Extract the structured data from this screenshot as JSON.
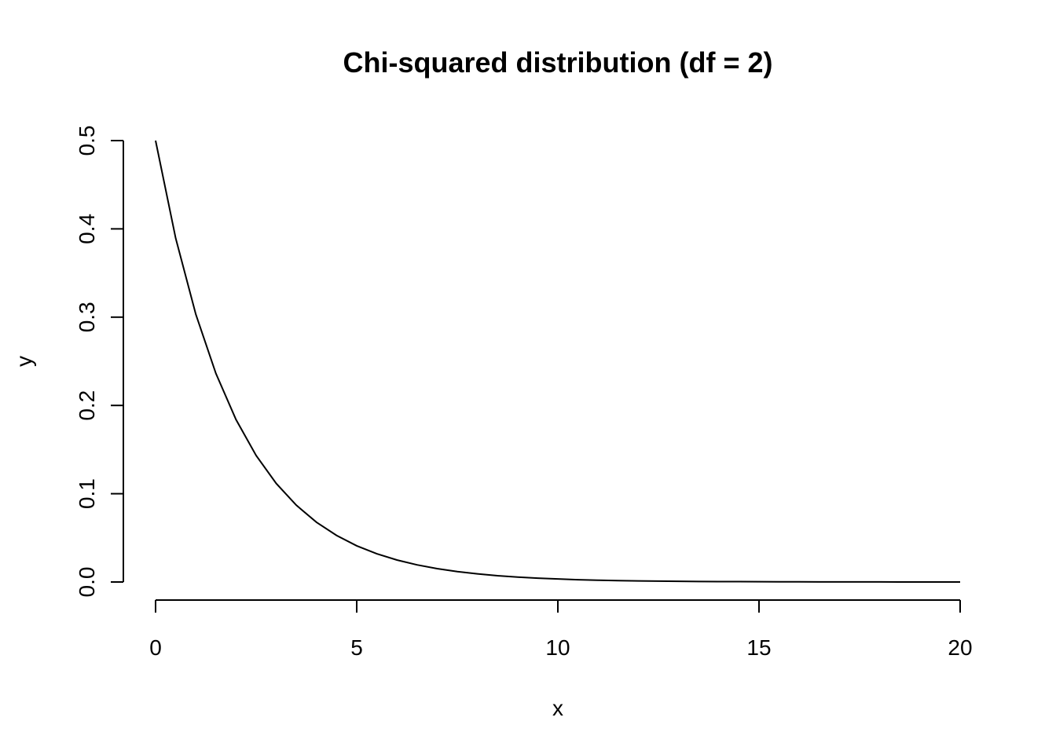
{
  "chart_data": {
    "type": "line",
    "title": "Chi-squared distribution (df = 2)",
    "xlabel": "x",
    "ylabel": "y",
    "xlim": [
      0,
      20
    ],
    "ylim": [
      0,
      0.5
    ],
    "x_ticks": [
      0,
      5,
      10,
      15,
      20
    ],
    "x_tick_labels": [
      "0",
      "5",
      "10",
      "15",
      "20"
    ],
    "y_ticks": [
      0,
      0.1,
      0.2,
      0.3,
      0.4,
      0.5
    ],
    "y_tick_labels": [
      "0.0",
      "0.1",
      "0.2",
      "0.3",
      "0.4",
      "0.5"
    ],
    "grid": false,
    "legend": "none",
    "series": [
      {
        "x": [
          0,
          0.5,
          1,
          1.5,
          2,
          2.5,
          3,
          3.5,
          4,
          4.5,
          5,
          5.5,
          6,
          6.5,
          7,
          7.5,
          8,
          8.5,
          9,
          9.5,
          10,
          10.5,
          11,
          11.5,
          12,
          12.5,
          13,
          13.5,
          14,
          14.5,
          15,
          15.5,
          16,
          16.5,
          17,
          17.5,
          18,
          18.5,
          19,
          19.5,
          20
        ],
        "values": [
          0.5,
          0.3894,
          0.3033,
          0.2362,
          0.1839,
          0.1433,
          0.1116,
          0.0869,
          0.0677,
          0.0527,
          0.041,
          0.032,
          0.0249,
          0.0194,
          0.0151,
          0.0118,
          0.0092,
          0.0071,
          0.0056,
          0.0043,
          0.0034,
          0.0026,
          0.002,
          0.0016,
          0.0012,
          0.001,
          0.0008,
          0.0006,
          0.0005,
          0.0004,
          0.0003,
          0.0002,
          0.0002,
          0.0001,
          0.0001,
          0.0001,
          0.0001,
          0.0,
          0.0,
          0.0,
          0.0
        ]
      }
    ]
  },
  "colors": {
    "line": "#000000",
    "background": "#ffffff"
  }
}
